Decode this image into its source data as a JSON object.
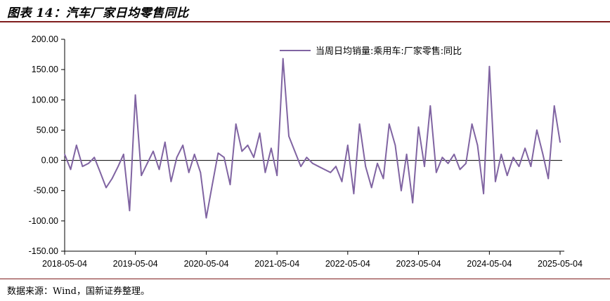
{
  "figure": {
    "title": "图表 14：汽车厂家日均零售同比",
    "source": "数据来源：Wind，国新证券整理。"
  },
  "colors": {
    "series": "#8064a2",
    "axis": "#000000",
    "rule": "#7f1d1d"
  },
  "chart_data": {
    "type": "line",
    "title": "",
    "xlabel": "",
    "ylabel": "",
    "ylim": [
      -150,
      200
    ],
    "yticks": [
      "200.00",
      "150.00",
      "100.00",
      "50.00",
      "0.00",
      "-50.00",
      "-100.00",
      "-150.00"
    ],
    "xticks": [
      "2018-05-04",
      "2019-05-04",
      "2020-05-04",
      "2021-05-04",
      "2022-05-04",
      "2023-05-04",
      "2024-05-04",
      "2025-05-04"
    ],
    "legend_position": "top-right",
    "grid": false,
    "series": [
      {
        "name": "当周日均销量:乘用车:厂家零售:同比",
        "x": [
          "2018-05-04",
          "2018-06-04",
          "2018-07-04",
          "2018-08-04",
          "2018-09-04",
          "2018-10-04",
          "2018-11-04",
          "2018-12-04",
          "2019-01-04",
          "2019-02-04",
          "2019-03-04",
          "2019-04-04",
          "2019-05-04",
          "2019-06-04",
          "2019-07-04",
          "2019-08-04",
          "2019-09-04",
          "2019-10-04",
          "2019-11-04",
          "2019-12-04",
          "2020-01-04",
          "2020-02-04",
          "2020-03-04",
          "2020-04-04",
          "2020-05-04",
          "2020-06-04",
          "2020-07-04",
          "2020-08-04",
          "2020-09-04",
          "2020-10-04",
          "2020-11-04",
          "2020-12-04",
          "2021-01-04",
          "2021-02-04",
          "2021-03-04",
          "2021-04-04",
          "2021-05-04",
          "2021-06-04",
          "2021-07-04",
          "2021-08-04",
          "2021-09-04",
          "2021-10-04",
          "2021-11-04",
          "2021-12-04",
          "2022-01-04",
          "2022-02-04",
          "2022-03-04",
          "2022-04-04",
          "2022-05-04",
          "2022-06-04",
          "2022-07-04",
          "2022-08-04",
          "2022-09-04",
          "2022-10-04",
          "2022-11-04",
          "2022-12-04",
          "2023-01-04",
          "2023-02-04",
          "2023-03-04",
          "2023-04-04",
          "2023-05-04",
          "2023-06-04",
          "2023-07-04",
          "2023-08-04",
          "2023-09-04",
          "2023-10-04",
          "2023-11-04",
          "2023-12-04",
          "2024-01-04",
          "2024-02-04",
          "2024-03-04",
          "2024-04-04",
          "2024-05-04",
          "2024-06-04",
          "2024-07-04",
          "2024-08-04",
          "2024-09-04",
          "2024-10-04",
          "2024-11-04",
          "2024-12-04",
          "2025-01-04",
          "2025-02-04",
          "2025-03-04",
          "2025-04-04",
          "2025-05-04"
        ],
        "values": [
          10,
          -15,
          25,
          -10,
          -5,
          5,
          -20,
          -45,
          -30,
          -10,
          10,
          -83,
          108,
          -25,
          -5,
          15,
          -15,
          30,
          -35,
          5,
          25,
          -20,
          10,
          -20,
          -95,
          -40,
          12,
          5,
          -40,
          60,
          15,
          25,
          5,
          45,
          -20,
          20,
          -25,
          168,
          40,
          15,
          -10,
          5,
          -5,
          -10,
          -15,
          -20,
          -10,
          -35,
          25,
          -55,
          60,
          -10,
          -45,
          -5,
          -30,
          60,
          25,
          -50,
          10,
          -70,
          55,
          -10,
          90,
          -20,
          5,
          -5,
          10,
          -15,
          -5,
          60,
          25,
          -55,
          155,
          -35,
          10,
          -25,
          5,
          -10,
          20,
          -10,
          50,
          10,
          -30,
          90,
          30
        ]
      }
    ]
  }
}
